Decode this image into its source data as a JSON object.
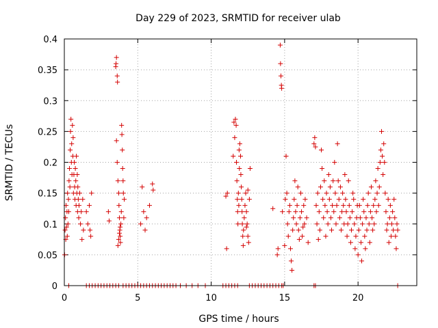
{
  "chart_data": {
    "type": "scatter",
    "title": "Day 229 of 2023, SRMTID for receiver ulab",
    "xlabel": "GPS time / hours",
    "ylabel": "SRMTID / TECUs",
    "xlim": [
      0,
      24
    ],
    "ylim": [
      0,
      0.4
    ],
    "xticks": [
      0,
      5,
      10,
      15,
      20
    ],
    "yticks": [
      0,
      0.05,
      0.1,
      0.15,
      0.2,
      0.25,
      0.3,
      0.35,
      0.4
    ],
    "xtick_labels": [
      "0",
      "5",
      "10",
      "15",
      "20"
    ],
    "ytick_labels": [
      "0",
      "0.05",
      "0.1",
      "0.15",
      "0.2",
      "0.25",
      "0.3",
      "0.35",
      "0.4"
    ],
    "grid": true,
    "marker": "+",
    "color": "#d40000",
    "series": [
      {
        "name": "SRMTID",
        "points": [
          [
            0.02,
            0.05
          ],
          [
            0.05,
            0.09
          ],
          [
            0.08,
            0.11
          ],
          [
            0.1,
            0.075
          ],
          [
            0.12,
            0.13
          ],
          [
            0.15,
            0.095
          ],
          [
            0.18,
            0.12
          ],
          [
            0.2,
            0.08
          ],
          [
            0.22,
            0.15
          ],
          [
            0.25,
            0.1
          ],
          [
            0.28,
            0.14
          ],
          [
            0.3,
            0.12
          ],
          [
            0.32,
            0.17
          ],
          [
            0.35,
            0.19
          ],
          [
            0.38,
            0.16
          ],
          [
            0.4,
            0.22
          ],
          [
            0.42,
            0.25
          ],
          [
            0.45,
            0.27
          ],
          [
            0.48,
            0.2
          ],
          [
            0.5,
            0.23
          ],
          [
            0.52,
            0.18
          ],
          [
            0.55,
            0.26
          ],
          [
            0.58,
            0.21
          ],
          [
            0.6,
            0.24
          ],
          [
            0.62,
            0.15
          ],
          [
            0.65,
            0.18
          ],
          [
            0.68,
            0.2
          ],
          [
            0.7,
            0.16
          ],
          [
            0.72,
            0.14
          ],
          [
            0.75,
            0.19
          ],
          [
            0.78,
            0.17
          ],
          [
            0.8,
            0.13
          ],
          [
            0.82,
            0.21
          ],
          [
            0.85,
            0.15
          ],
          [
            0.88,
            0.18
          ],
          [
            0.9,
            0.12
          ],
          [
            0.92,
            0.16
          ],
          [
            0.95,
            0.14
          ],
          [
            0.98,
            0.11
          ],
          [
            1.0,
            0.13
          ],
          [
            1.05,
            0.15
          ],
          [
            1.1,
            0.1
          ],
          [
            1.15,
            0.12
          ],
          [
            1.2,
            0.075
          ],
          [
            1.25,
            0.14
          ],
          [
            1.3,
            0.09
          ],
          [
            1.5,
            0.12
          ],
          [
            1.6,
            0.1
          ],
          [
            1.7,
            0.13
          ],
          [
            1.75,
            0.09
          ],
          [
            1.8,
            0.08
          ],
          [
            1.85,
            0.15
          ],
          [
            3.0,
            0.12
          ],
          [
            3.05,
            0.105
          ],
          [
            3.5,
            0.355
          ],
          [
            3.55,
            0.37
          ],
          [
            3.6,
            0.34
          ],
          [
            3.62,
            0.33
          ],
          [
            3.52,
            0.36
          ],
          [
            3.55,
            0.235
          ],
          [
            3.6,
            0.2
          ],
          [
            3.65,
            0.17
          ],
          [
            3.7,
            0.15
          ],
          [
            3.72,
            0.13
          ],
          [
            3.75,
            0.11
          ],
          [
            3.78,
            0.09
          ],
          [
            3.8,
            0.08
          ],
          [
            3.82,
            0.07
          ],
          [
            3.85,
            0.1
          ],
          [
            3.88,
            0.12
          ],
          [
            3.9,
            0.26
          ],
          [
            3.92,
            0.245
          ],
          [
            3.95,
            0.22
          ],
          [
            3.97,
            0.19
          ],
          [
            4.0,
            0.17
          ],
          [
            4.02,
            0.15
          ],
          [
            4.05,
            0.11
          ],
          [
            4.08,
            0.14
          ],
          [
            3.65,
            0.065
          ],
          [
            3.7,
            0.075
          ],
          [
            3.75,
            0.085
          ],
          [
            3.8,
            0.095
          ],
          [
            5.2,
            0.1
          ],
          [
            5.3,
            0.16
          ],
          [
            5.4,
            0.12
          ],
          [
            5.5,
            0.09
          ],
          [
            5.6,
            0.11
          ],
          [
            5.8,
            0.13
          ],
          [
            6.0,
            0.165
          ],
          [
            6.05,
            0.155
          ],
          [
            11.0,
            0.145
          ],
          [
            11.05,
            0.06
          ],
          [
            11.1,
            0.15
          ],
          [
            11.5,
            0.21
          ],
          [
            11.55,
            0.265
          ],
          [
            11.6,
            0.24
          ],
          [
            11.65,
            0.27
          ],
          [
            11.7,
            0.26
          ],
          [
            11.72,
            0.2
          ],
          [
            11.75,
            0.17
          ],
          [
            11.78,
            0.14
          ],
          [
            11.8,
            0.12
          ],
          [
            11.82,
            0.1
          ],
          [
            11.85,
            0.15
          ],
          [
            11.88,
            0.13
          ],
          [
            11.9,
            0.22
          ],
          [
            11.92,
            0.19
          ],
          [
            11.95,
            0.23
          ],
          [
            12.0,
            0.21
          ],
          [
            12.02,
            0.18
          ],
          [
            12.05,
            0.16
          ],
          [
            12.08,
            0.14
          ],
          [
            12.1,
            0.12
          ],
          [
            12.12,
            0.1
          ],
          [
            12.15,
            0.08
          ],
          [
            12.18,
            0.065
          ],
          [
            12.2,
            0.09
          ],
          [
            12.25,
            0.11
          ],
          [
            12.3,
            0.13
          ],
          [
            12.35,
            0.15
          ],
          [
            12.4,
            0.12
          ],
          [
            12.45,
            0.1
          ],
          [
            12.5,
            0.08
          ],
          [
            12.55,
            0.07
          ],
          [
            12.6,
            0.14
          ],
          [
            12.65,
            0.19
          ],
          [
            12.5,
            0.155
          ],
          [
            12.4,
            0.095
          ],
          [
            14.2,
            0.125
          ],
          [
            14.5,
            0.05
          ],
          [
            14.55,
            0.06
          ],
          [
            14.7,
            0.39
          ],
          [
            14.72,
            0.36
          ],
          [
            14.75,
            0.34
          ],
          [
            14.78,
            0.325
          ],
          [
            14.8,
            0.32
          ],
          [
            14.85,
            0.12
          ],
          [
            15.0,
            0.065
          ],
          [
            15.05,
            0.14
          ],
          [
            15.1,
            0.21
          ],
          [
            15.15,
            0.15
          ],
          [
            15.2,
            0.1
          ],
          [
            15.25,
            0.08
          ],
          [
            15.3,
            0.12
          ],
          [
            15.35,
            0.13
          ],
          [
            15.4,
            0.06
          ],
          [
            15.45,
            0.04
          ],
          [
            15.5,
            0.025
          ],
          [
            15.55,
            0.09
          ],
          [
            15.6,
            0.11
          ],
          [
            15.65,
            0.14
          ],
          [
            15.7,
            0.17
          ],
          [
            15.75,
            0.12
          ],
          [
            15.8,
            0.1
          ],
          [
            15.85,
            0.13
          ],
          [
            15.9,
            0.16
          ],
          [
            15.95,
            0.09
          ],
          [
            16.0,
            0.075
          ],
          [
            16.05,
            0.11
          ],
          [
            16.1,
            0.15
          ],
          [
            16.15,
            0.12
          ],
          [
            16.2,
            0.08
          ],
          [
            16.25,
            0.095
          ],
          [
            16.3,
            0.13
          ],
          [
            16.35,
            0.1
          ],
          [
            16.4,
            0.14
          ],
          [
            16.5,
            0.11
          ],
          [
            16.6,
            0.07
          ],
          [
            17.0,
            0.23
          ],
          [
            17.05,
            0.24
          ],
          [
            17.1,
            0.225
          ],
          [
            17.15,
            0.13
          ],
          [
            17.2,
            0.1
          ],
          [
            17.25,
            0.15
          ],
          [
            17.3,
            0.075
          ],
          [
            17.35,
            0.12
          ],
          [
            17.4,
            0.09
          ],
          [
            17.45,
            0.16
          ],
          [
            17.5,
            0.22
          ],
          [
            17.55,
            0.19
          ],
          [
            17.6,
            0.14
          ],
          [
            17.65,
            0.11
          ],
          [
            17.7,
            0.17
          ],
          [
            17.75,
            0.13
          ],
          [
            17.8,
            0.08
          ],
          [
            17.85,
            0.15
          ],
          [
            17.9,
            0.12
          ],
          [
            17.95,
            0.1
          ],
          [
            18.0,
            0.18
          ],
          [
            18.05,
            0.14
          ],
          [
            18.1,
            0.16
          ],
          [
            18.15,
            0.11
          ],
          [
            18.2,
            0.09
          ],
          [
            18.25,
            0.13
          ],
          [
            18.3,
            0.17
          ],
          [
            18.35,
            0.12
          ],
          [
            18.4,
            0.2
          ],
          [
            18.45,
            0.15
          ],
          [
            18.5,
            0.1
          ],
          [
            18.55,
            0.13
          ],
          [
            18.6,
            0.23
          ],
          [
            18.65,
            0.17
          ],
          [
            18.7,
            0.14
          ],
          [
            18.75,
            0.11
          ],
          [
            18.8,
            0.16
          ],
          [
            18.85,
            0.09
          ],
          [
            18.9,
            0.12
          ],
          [
            18.95,
            0.15
          ],
          [
            19.0,
            0.13
          ],
          [
            19.05,
            0.1
          ],
          [
            19.1,
            0.18
          ],
          [
            19.15,
            0.14
          ],
          [
            19.2,
            0.12
          ],
          [
            19.25,
            0.08
          ],
          [
            19.3,
            0.1
          ],
          [
            19.35,
            0.17
          ],
          [
            19.4,
            0.13
          ],
          [
            19.45,
            0.11
          ],
          [
            19.5,
            0.07
          ],
          [
            19.55,
            0.09
          ],
          [
            19.6,
            0.12
          ],
          [
            19.65,
            0.15
          ],
          [
            19.7,
            0.14
          ],
          [
            19.75,
            0.1
          ],
          [
            19.8,
            0.06
          ],
          [
            19.85,
            0.08
          ],
          [
            19.9,
            0.11
          ],
          [
            19.95,
            0.13
          ],
          [
            20.0,
            0.05
          ],
          [
            20.05,
            0.09
          ],
          [
            20.1,
            0.13
          ],
          [
            20.15,
            0.11
          ],
          [
            20.2,
            0.07
          ],
          [
            20.25,
            0.04
          ],
          [
            20.3,
            0.1
          ],
          [
            20.35,
            0.14
          ],
          [
            20.4,
            0.12
          ],
          [
            20.45,
            0.08
          ],
          [
            20.5,
            0.06
          ],
          [
            20.55,
            0.11
          ],
          [
            20.6,
            0.09
          ],
          [
            20.65,
            0.13
          ],
          [
            20.7,
            0.15
          ],
          [
            20.75,
            0.1
          ],
          [
            20.8,
            0.07
          ],
          [
            20.85,
            0.12
          ],
          [
            20.9,
            0.16
          ],
          [
            20.95,
            0.11
          ],
          [
            21.0,
            0.09
          ],
          [
            21.05,
            0.13
          ],
          [
            21.1,
            0.1
          ],
          [
            21.15,
            0.14
          ],
          [
            21.2,
            0.17
          ],
          [
            21.25,
            0.12
          ],
          [
            21.3,
            0.15
          ],
          [
            21.35,
            0.19
          ],
          [
            21.4,
            0.13
          ],
          [
            21.45,
            0.16
          ],
          [
            21.5,
            0.2
          ],
          [
            21.55,
            0.22
          ],
          [
            21.6,
            0.25
          ],
          [
            21.65,
            0.21
          ],
          [
            21.7,
            0.18
          ],
          [
            21.75,
            0.23
          ],
          [
            21.8,
            0.2
          ],
          [
            21.85,
            0.15
          ],
          [
            21.9,
            0.12
          ],
          [
            21.95,
            0.09
          ],
          [
            22.0,
            0.1
          ],
          [
            22.05,
            0.14
          ],
          [
            22.1,
            0.07
          ],
          [
            22.15,
            0.11
          ],
          [
            22.2,
            0.13
          ],
          [
            22.25,
            0.08
          ],
          [
            22.3,
            0.1
          ],
          [
            22.35,
            0.12
          ],
          [
            22.4,
            0.09
          ],
          [
            22.45,
            0.14
          ],
          [
            22.5,
            0.11
          ],
          [
            22.55,
            0.08
          ],
          [
            22.6,
            0.06
          ],
          [
            22.65,
            0.1
          ],
          [
            22.7,
            0.09
          ]
        ],
        "zero_points_x": [
          0.3,
          1.5,
          1.7,
          1.9,
          2.1,
          2.3,
          2.5,
          2.7,
          2.9,
          3.1,
          3.3,
          3.5,
          3.7,
          4.0,
          4.2,
          4.4,
          4.6,
          4.8,
          5.0,
          5.2,
          5.4,
          5.6,
          5.8,
          6.0,
          6.2,
          6.4,
          6.6,
          6.8,
          7.0,
          7.2,
          7.4,
          7.6,
          7.9,
          8.3,
          8.7,
          9.1,
          9.6,
          10.8,
          11.0,
          11.2,
          11.4,
          11.6,
          11.8,
          12.6,
          12.8,
          13.0,
          13.2,
          13.4,
          13.6,
          13.8,
          14.0,
          14.2,
          14.4,
          14.6,
          14.8,
          14.9,
          17.0,
          17.1,
          22.7
        ]
      }
    ]
  }
}
